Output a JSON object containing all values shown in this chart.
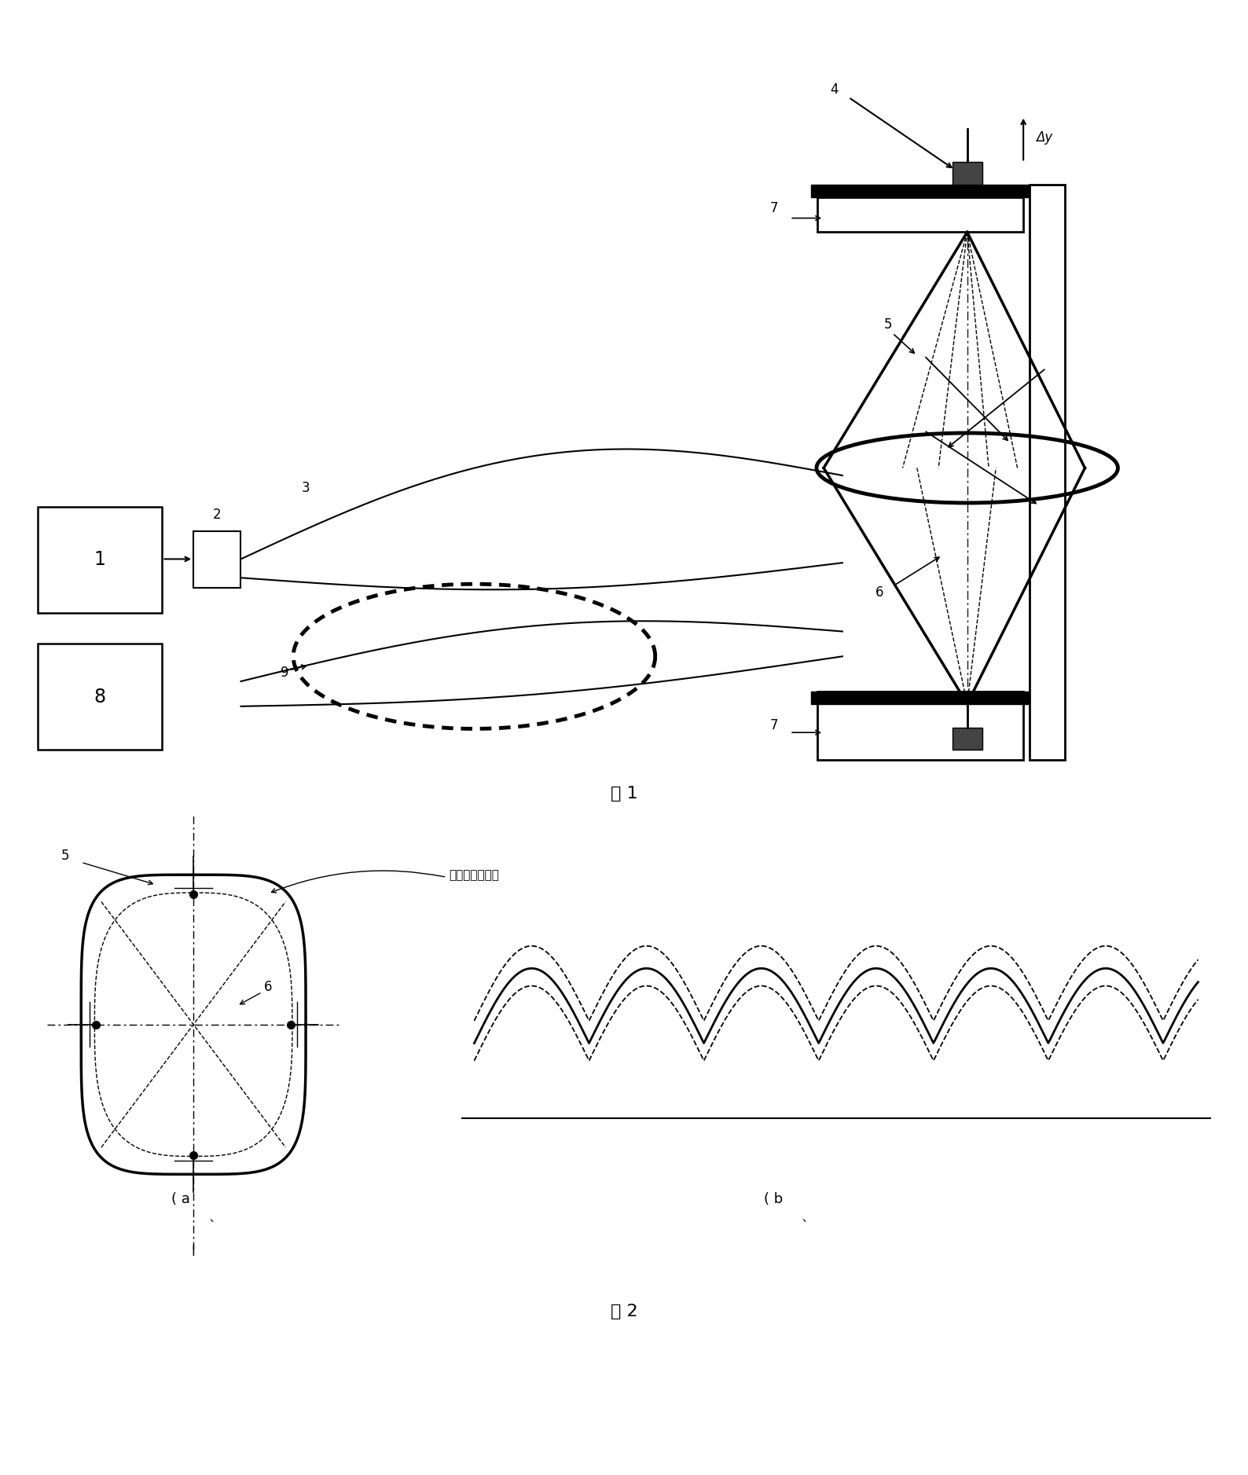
{
  "fig_width": 15.88,
  "fig_height": 18.77,
  "bg_color": "#ffffff",
  "lc": "#000000",
  "fig1_title": "图 1",
  "fig2_title": "图 2",
  "label_deformed": "变形后的光纤环",
  "sub_a": "( a",
  "sub_b": "( b",
  "delta_y": "Δy",
  "note_a": "`",
  "note_b": "`"
}
